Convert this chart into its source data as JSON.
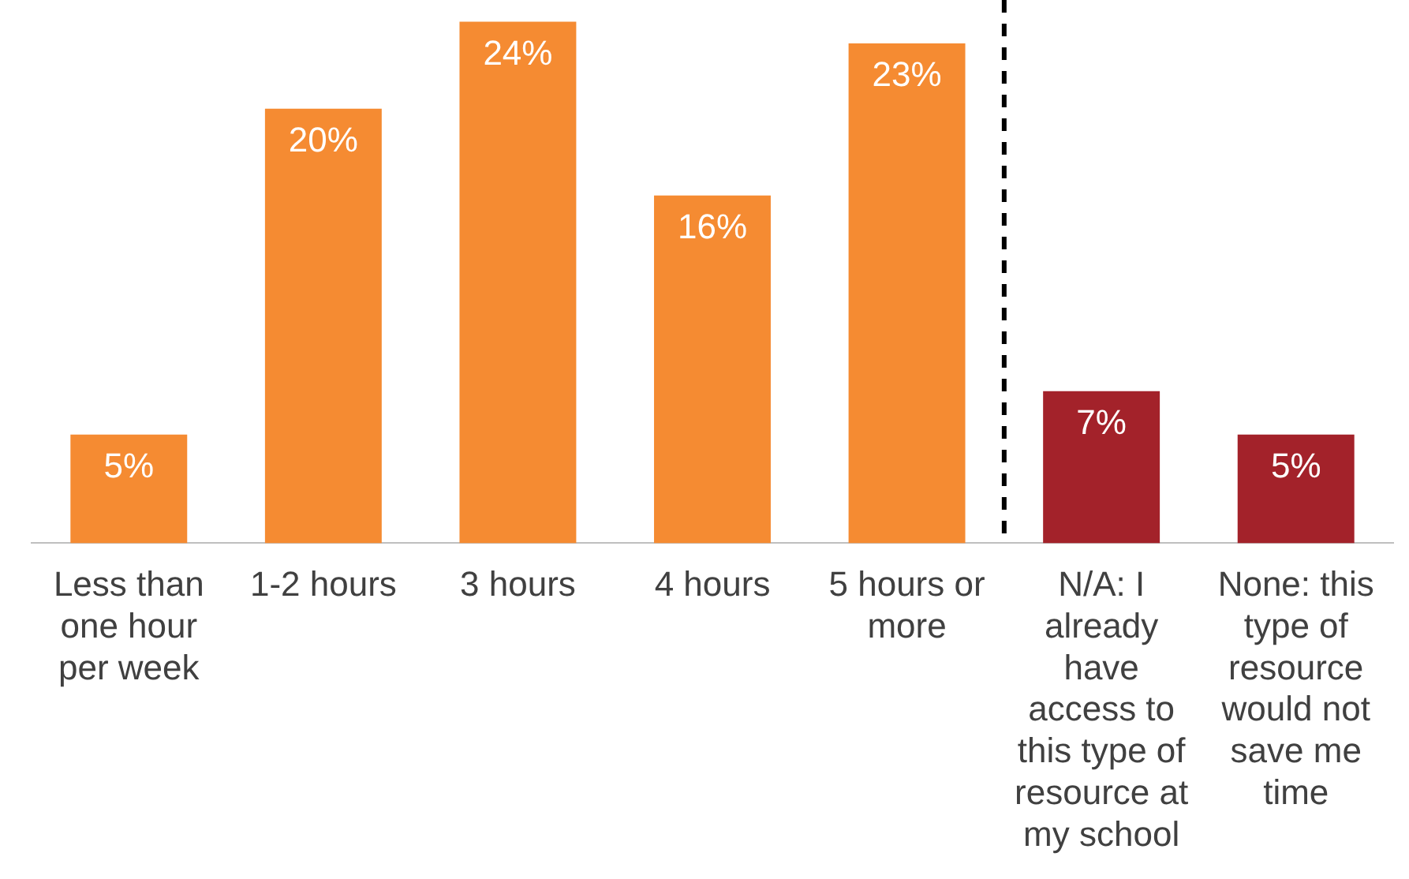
{
  "chart_data": {
    "type": "bar",
    "categories": [
      "Less than one hour per week",
      "1-2 hours",
      "3 hours",
      "4 hours",
      "5 hours or more",
      "N/A: I already have access to this type of resource at my school",
      "None: this type of resource would not save me time"
    ],
    "values": [
      5,
      20,
      24,
      16,
      23,
      7,
      5
    ],
    "value_labels": [
      "5%",
      "20%",
      "24%",
      "16%",
      "23%",
      "7%",
      "5%"
    ],
    "colors": [
      "#f58b32",
      "#f58b32",
      "#f58b32",
      "#f58b32",
      "#f58b32",
      "#a3222a",
      "#a3222a"
    ],
    "grid": false,
    "legend": false
  }
}
